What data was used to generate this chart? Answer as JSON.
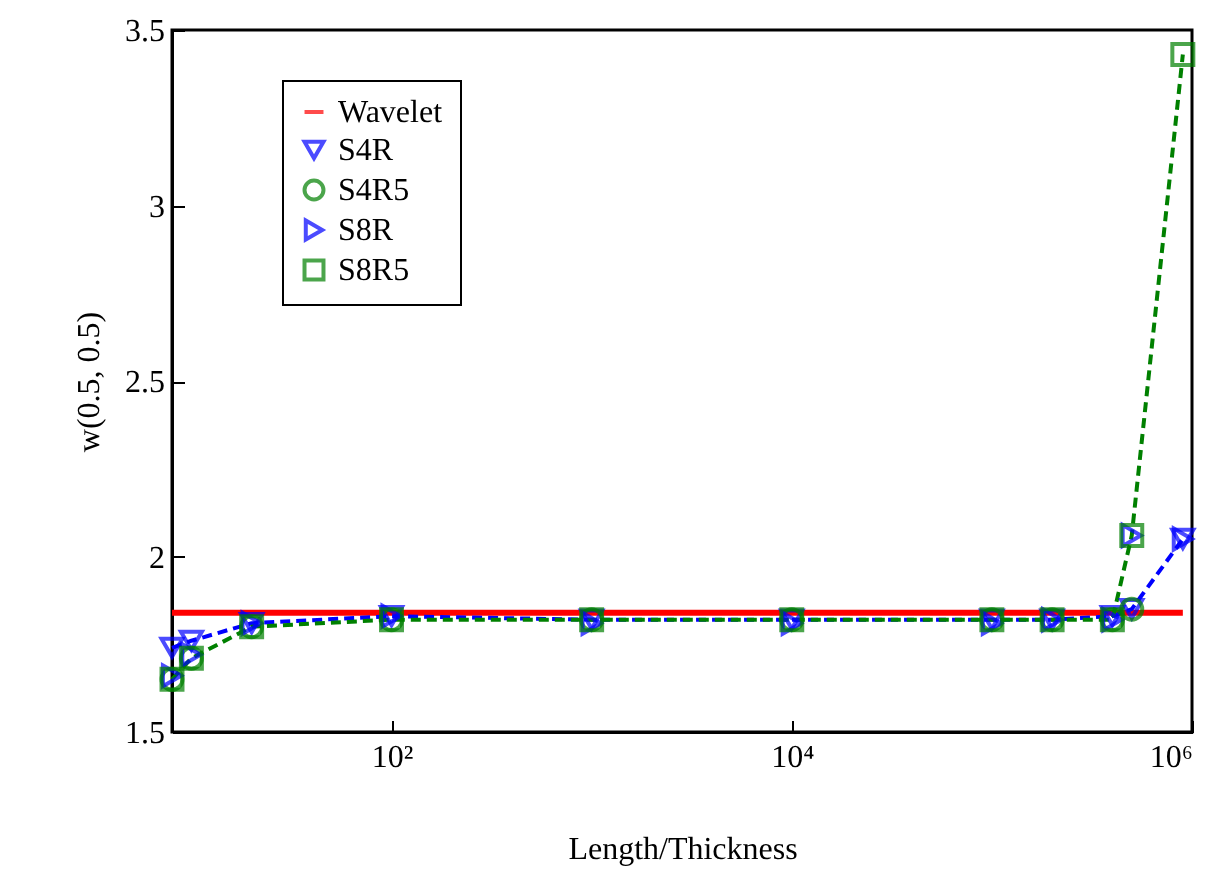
{
  "chart_data": {
    "type": "line",
    "xlabel": "Length/Thickness",
    "ylabel": "w(0.5, 0.5)",
    "log": "x",
    "grid": false,
    "legend": "top left",
    "xlim": [
      8,
      1000000
    ],
    "xticks": [
      {
        "value": 100,
        "label": "10²"
      },
      {
        "value": 10000,
        "label": "10⁴"
      },
      {
        "value": 1000000,
        "label": "10⁶"
      }
    ],
    "ylim": [
      1.5,
      3.5
    ],
    "yticks": [
      1.5,
      2,
      2.5,
      3,
      3.5
    ],
    "x": [
      8,
      10,
      20,
      100,
      1000,
      10000,
      100000,
      200000,
      400000,
      500000,
      900000
    ],
    "series": [
      {
        "name": "Wavelet",
        "color": "#ff0000",
        "marker": "none",
        "line_style": "solid",
        "x": [
          8,
          900000
        ],
        "values": [
          1.84,
          1.84
        ]
      },
      {
        "name": "S4R",
        "color": "#0000ff",
        "marker": "triangle-down",
        "line_style": "dashed",
        "values": [
          1.74,
          1.76,
          1.81,
          1.83,
          1.82,
          1.82,
          1.82,
          1.82,
          1.83,
          1.85,
          2.05
        ]
      },
      {
        "name": "S4R5",
        "type": "scatter",
        "color": "#008000",
        "marker": "circle",
        "values": [
          1.65,
          1.71,
          1.8,
          1.82,
          1.82,
          1.82,
          1.82,
          1.82,
          1.82,
          1.85,
          null
        ]
      },
      {
        "name": "S8R",
        "type": "scatter",
        "color": "#0000ff",
        "marker": "triangle-right",
        "values": [
          1.66,
          1.72,
          1.81,
          1.83,
          1.81,
          1.81,
          1.81,
          1.82,
          1.82,
          2.06,
          2.05
        ]
      },
      {
        "name": "S8R5",
        "color": "#008000",
        "marker": "square",
        "line_style": "dashed",
        "values": [
          1.65,
          1.71,
          1.8,
          1.82,
          1.82,
          1.82,
          1.82,
          1.82,
          1.82,
          2.06,
          3.43
        ]
      }
    ]
  }
}
